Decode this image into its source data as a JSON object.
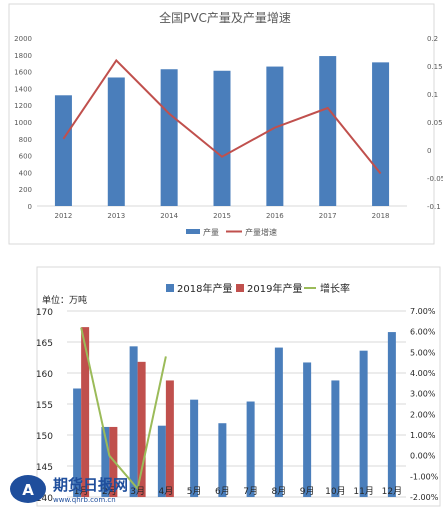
{
  "chart_data": [
    {
      "type": "bar",
      "title": "全国PVC产量及产量增速",
      "categories": [
        "2012",
        "2013",
        "2014",
        "2015",
        "2016",
        "2017",
        "2018"
      ],
      "series": [
        {
          "name": "产量",
          "kind": "bar",
          "axis": "left",
          "color": "#4a7ebb",
          "values": [
            1318,
            1530,
            1628,
            1610,
            1660,
            1785,
            1710
          ]
        },
        {
          "name": "产量增速",
          "kind": "line",
          "axis": "right",
          "color": "#c0504d",
          "values": [
            0.02,
            0.16,
            0.065,
            -0.012,
            0.04,
            0.075,
            -0.042
          ]
        }
      ],
      "ylim_left": [
        0,
        2000
      ],
      "yticks_left": [
        "0",
        "200",
        "400",
        "600",
        "800",
        "1000",
        "1200",
        "1400",
        "1600",
        "1800",
        "2000"
      ],
      "ylim_right": [
        -0.1,
        0.2
      ],
      "yticks_right": [
        "-0.1",
        "-0.05",
        "0",
        "0.05",
        "0.1",
        "0.15",
        "0.2"
      ],
      "legend": "bottom",
      "grid": false
    },
    {
      "type": "bar",
      "title": "",
      "ylabel": "单位：万吨",
      "categories": [
        "1月",
        "2月",
        "3月",
        "4月",
        "5月",
        "6月",
        "7月",
        "8月",
        "9月",
        "10月",
        "11月",
        "12月"
      ],
      "series": [
        {
          "name": "2018年产量",
          "kind": "bar",
          "axis": "left",
          "color": "#4a7ebb",
          "values": [
            157.5,
            151.3,
            164.3,
            151.5,
            155.7,
            151.9,
            155.4,
            164.1,
            161.7,
            158.8,
            163.6,
            166.6
          ]
        },
        {
          "name": "2019年产量",
          "kind": "bar",
          "axis": "left",
          "color": "#c0504d",
          "values": [
            167.4,
            151.3,
            161.8,
            158.8,
            null,
            null,
            null,
            null,
            null,
            null,
            null,
            null
          ]
        },
        {
          "name": "增长率",
          "kind": "line",
          "axis": "right",
          "color": "#9bbb59",
          "values": [
            6.2,
            0.0,
            -1.6,
            4.8,
            null,
            null,
            null,
            null,
            null,
            null,
            null,
            null
          ]
        }
      ],
      "ylim_left": [
        140,
        170
      ],
      "yticks_left": [
        "140",
        "145",
        "150",
        "155",
        "160",
        "165",
        "170"
      ],
      "ylim_right": [
        -2.0,
        7.0
      ],
      "yticks_right": [
        "-2.00%",
        "-1.00%",
        "0.00%",
        "1.00%",
        "2.00%",
        "3.00%",
        "4.00%",
        "5.00%",
        "6.00%",
        "7.00%"
      ],
      "legend": "top",
      "grid": true
    }
  ],
  "watermark": {
    "brand": "期货日报网",
    "url": "www.qhrb.com.cn"
  }
}
